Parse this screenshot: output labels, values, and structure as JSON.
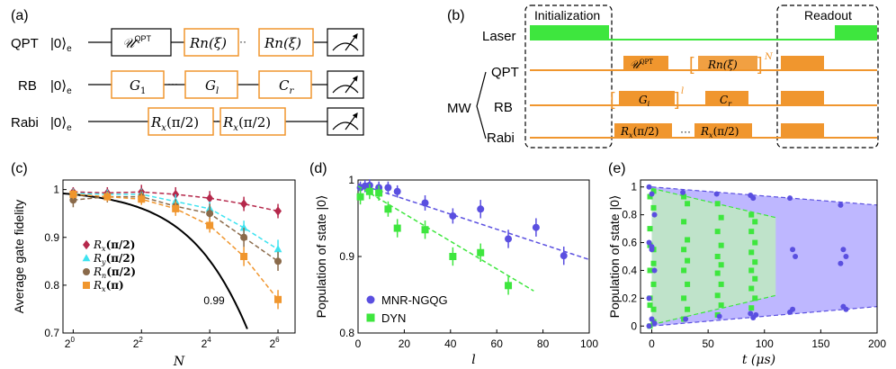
{
  "colors": {
    "orange": "#f0962e",
    "green": "#3ee63e",
    "purple": "#5a4fe0",
    "crimson": "#b5284b",
    "cyan": "#3ee3f0",
    "brown": "#8a6a4a",
    "black": "#000000",
    "lavender": "#b7afff",
    "mint": "#bfe8c4"
  },
  "panel_a": {
    "label": "(a)",
    "rows": [
      {
        "name": "QPT",
        "ket": "|0⟩",
        "ket_sub": "e",
        "gates": [
          "𝒰",
          "Rn(ξ)",
          "Rn(ξ)"
        ],
        "first_sup": "QPT",
        "first_black": true
      },
      {
        "name": "RB",
        "ket": "|0⟩",
        "ket_sub": "e",
        "gates": [
          "G1",
          "Gl",
          "Cr"
        ]
      },
      {
        "name": "Rabi",
        "ket": "|0⟩",
        "ket_sub": "e",
        "gates": [
          "Rx(π/2)",
          "Rx(π/2)"
        ]
      }
    ]
  },
  "panel_b": {
    "label": "(b)",
    "init_label": "Initialization",
    "readout_label": "Readout",
    "laser_label": "Laser",
    "mw_label": "MW",
    "channels": [
      "QPT",
      "RB",
      "Rabi"
    ],
    "qpt_pulse_1": "𝒰QPT",
    "qpt_pulse_2": "Rn(ξ)",
    "qpt_power": "N",
    "rb_pulse_1": "Gi",
    "rb_power": "l",
    "rb_pulse_2": "Cr",
    "rabi_pulse_1": "Rx(π/2)",
    "rabi_pulse_2": "Rx(π/2)",
    "rabi_dots": "···"
  },
  "chart_data": [
    {
      "id": "c",
      "type": "scatter",
      "label": "(c)",
      "xlabel": "N",
      "ylabel": "Average gate fidelity",
      "x_ticks": [
        {
          "label": "2",
          "exp": "0",
          "v": 0
        },
        {
          "label": "2",
          "exp": "2",
          "v": 2
        },
        {
          "label": "2",
          "exp": "4",
          "v": 4
        },
        {
          "label": "2",
          "exp": "6",
          "v": 6
        }
      ],
      "xlim": [
        -0.3,
        6.5
      ],
      "ylim": [
        0.7,
        1.02
      ],
      "y_ticks": [
        "1",
        "0.9",
        "0.8",
        "0.7"
      ],
      "y_tick_values": [
        1,
        0.9,
        0.8,
        0.7
      ],
      "annotation": "0.99",
      "series": [
        {
          "name": "Rx(π/2)",
          "sub": "x",
          "arg": "(π/2)",
          "color": "#b5284b",
          "marker": "diamond",
          "log2x": [
            0,
            1,
            2,
            3,
            4,
            5,
            6
          ],
          "y": [
            0.995,
            0.993,
            0.995,
            0.99,
            0.982,
            0.97,
            0.955
          ],
          "err": [
            0.01,
            0.012,
            0.015,
            0.015,
            0.015,
            0.015,
            0.015
          ]
        },
        {
          "name": "Ry(π/2)",
          "sub": "y",
          "arg": "(π/2)",
          "color": "#3ee3f0",
          "marker": "triangle",
          "log2x": [
            0,
            1,
            2,
            3,
            4,
            5,
            6
          ],
          "y": [
            0.992,
            0.99,
            0.99,
            0.975,
            0.96,
            0.92,
            0.875
          ],
          "err": [
            0.01,
            0.01,
            0.012,
            0.015,
            0.015,
            0.015,
            0.02
          ]
        },
        {
          "name": "Rn(π/2)",
          "sub": "n",
          "arg": "(π/2)",
          "color": "#8a6a4a",
          "marker": "circle",
          "log2x": [
            0,
            1,
            2,
            3,
            4,
            5,
            6
          ],
          "y": [
            0.978,
            0.985,
            0.985,
            0.965,
            0.95,
            0.9,
            0.85
          ],
          "err": [
            0.015,
            0.012,
            0.015,
            0.015,
            0.02,
            0.02,
            0.02
          ]
        },
        {
          "name": "Rx(π)",
          "sub": "x",
          "arg": "(π)",
          "color": "#f0962e",
          "marker": "square",
          "log2x": [
            0,
            1,
            2,
            3,
            4,
            5,
            6
          ],
          "y": [
            0.99,
            0.985,
            0.98,
            0.96,
            0.925,
            0.86,
            0.77
          ],
          "err": [
            0.01,
            0.01,
            0.012,
            0.015,
            0.015,
            0.02,
            0.02
          ]
        }
      ],
      "reference_curve": {
        "F": 0.99,
        "color": "#000000"
      }
    },
    {
      "id": "d",
      "type": "scatter",
      "label": "(d)",
      "xlabel": "l",
      "ylabel": "Population of state |0⟩",
      "xlim": [
        0,
        100
      ],
      "ylim": [
        0.8,
        1.0
      ],
      "x_ticks": [
        0,
        20,
        40,
        60,
        80,
        100
      ],
      "y_ticks": [
        1,
        0.9,
        0.8
      ],
      "y_tick_labels": [
        "1",
        "0.9",
        "0.8"
      ],
      "series": [
        {
          "name": "MNR-NGQG",
          "color": "#5a4fe0",
          "marker": "circle",
          "x": [
            1,
            3,
            5,
            9,
            13,
            17,
            29,
            41,
            53,
            65,
            77,
            89
          ],
          "y": [
            0.99,
            0.992,
            0.993,
            0.99,
            0.99,
            0.985,
            0.97,
            0.953,
            0.962,
            0.923,
            0.938,
            0.901
          ],
          "err": [
            0.008,
            0.008,
            0.008,
            0.008,
            0.008,
            0.008,
            0.01,
            0.01,
            0.012,
            0.012,
            0.012,
            0.012
          ],
          "fit": {
            "x0": 0,
            "y0": 0.995,
            "x1": 100,
            "y1": 0.896
          }
        },
        {
          "name": "DYN",
          "color": "#3ee63e",
          "marker": "square",
          "x": [
            1,
            5,
            9,
            13,
            17,
            29,
            41,
            53,
            65
          ],
          "y": [
            0.978,
            0.985,
            0.983,
            0.962,
            0.937,
            0.935,
            0.9,
            0.905,
            0.862
          ],
          "err": [
            0.01,
            0.01,
            0.01,
            0.01,
            0.012,
            0.012,
            0.012,
            0.012,
            0.012
          ],
          "fit": {
            "x0": 0,
            "y0": 0.992,
            "x1": 76,
            "y1": 0.855
          }
        }
      ]
    },
    {
      "id": "e",
      "type": "scatter",
      "label": "(e)",
      "xlabel": "t (μs)",
      "ylabel": "Population of state |0⟩",
      "xlim": [
        -10,
        200
      ],
      "ylim": [
        -0.05,
        1.05
      ],
      "x_ticks": [
        0,
        50,
        100,
        150,
        200
      ],
      "y_ticks": [
        0,
        0.2,
        0.4,
        0.6,
        0.8,
        1
      ],
      "y_tick_labels": [
        "0",
        "0.2",
        "0.4",
        "0.6",
        "0.8",
        "1"
      ],
      "series": [
        {
          "name": "MNR-NGQG",
          "color": "#5a4fe0",
          "marker": "circle",
          "groups": [
            {
              "t": 0,
              "y": [
                1.0,
                0.95,
                0.8,
                0.6,
                0.55,
                0.4,
                0.2,
                0.05,
                0.02,
                0.0,
                0.57
              ]
            },
            {
              "t": 30,
              "y": [
                0.96,
                0.05
              ]
            },
            {
              "t": 60,
              "y": [
                0.95,
                0.07
              ]
            },
            {
              "t": 90,
              "y": [
                0.94,
                0.92,
                0.08,
                0.09,
                0.06
              ]
            },
            {
              "t": 125,
              "y": [
                0.92,
                0.55,
                0.5,
                0.1,
                0.12
              ]
            },
            {
              "t": 170,
              "y": [
                0.87,
                0.55,
                0.5,
                0.45,
                0.14,
                0.12
              ]
            }
          ],
          "envelope": {
            "upper": [
              [
                0,
                1.0
              ],
              [
                200,
                0.87
              ]
            ],
            "lower": [
              [
                0,
                0.0
              ],
              [
                200,
                0.14
              ]
            ]
          }
        },
        {
          "name": "DYN",
          "color": "#3ee63e",
          "marker": "square",
          "groups": [
            {
              "t": 0,
              "y": [
                0.93,
                0.85,
                0.7,
                0.55,
                0.4,
                0.3,
                0.15,
                0.03,
                0.0,
                0.97,
                0.58,
                0.45,
                0.2,
                0.12
              ]
            },
            {
              "t": 30,
              "y": [
                0.93,
                0.88,
                0.75,
                0.62,
                0.55,
                0.47,
                0.4,
                0.3,
                0.2,
                0.12,
                0.05
              ]
            },
            {
              "t": 60,
              "y": [
                0.88,
                0.78,
                0.68,
                0.58,
                0.5,
                0.44,
                0.38,
                0.3,
                0.22,
                0.15,
                0.08
              ]
            },
            {
              "t": 90,
              "y": [
                0.8,
                0.75,
                0.68,
                0.6,
                0.53,
                0.46,
                0.4,
                0.34,
                0.27,
                0.2,
                0.13
              ]
            }
          ],
          "envelope": {
            "upper": [
              [
                0,
                0.99
              ],
              [
                110,
                0.78
              ]
            ],
            "lower": [
              [
                0,
                0.01
              ],
              [
                110,
                0.22
              ]
            ]
          }
        }
      ]
    }
  ]
}
